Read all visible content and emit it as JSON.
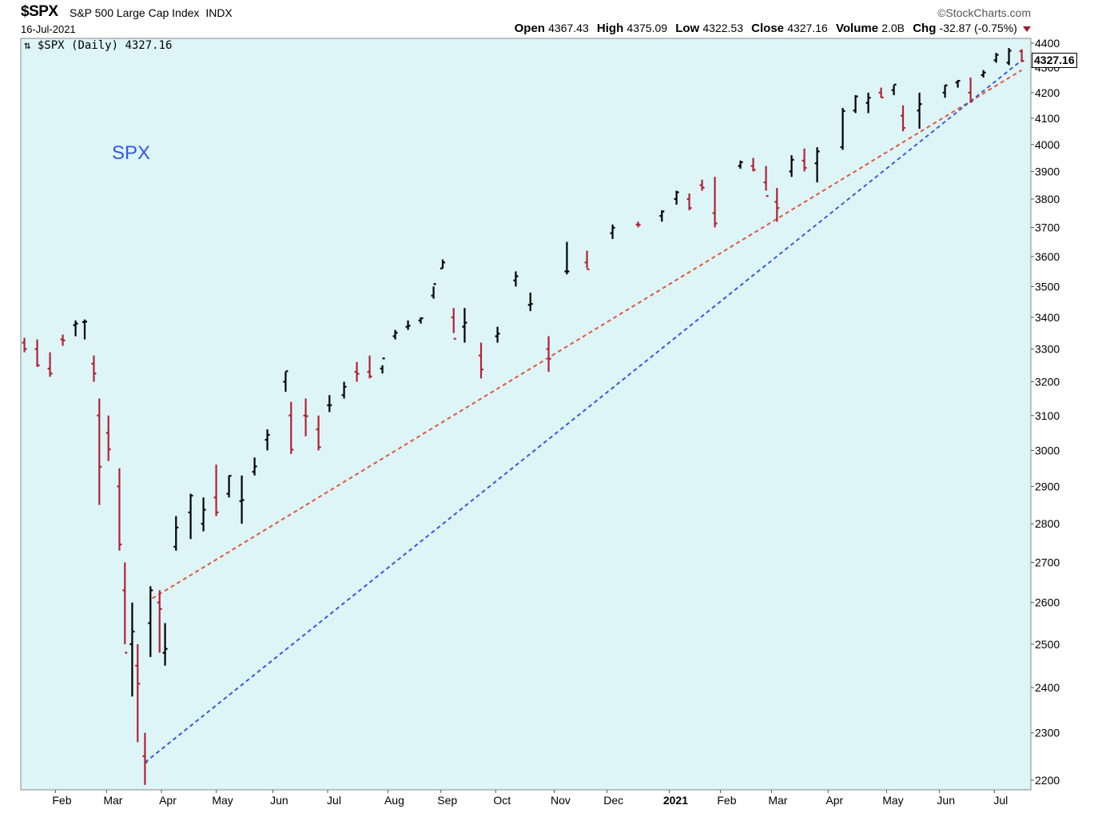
{
  "header": {
    "symbol": "$SPX",
    "name": "S&P 500 Large Cap Index",
    "exchange": "INDX",
    "date": "16-Jul-2021",
    "brand": "©StockCharts.com",
    "open_label": "Open",
    "open": "4367.43",
    "high_label": "High",
    "high": "4375.09",
    "low_label": "Low",
    "low": "4322.53",
    "close_label": "Close",
    "close": "4327.16",
    "volume_label": "Volume",
    "volume": "2.0B",
    "chg_label": "Chg",
    "chg": "-32.87 (-0.75%)",
    "chg_direction_icon": "down-triangle-icon"
  },
  "legend": "$SPX (Daily) 4327.16",
  "annotation": "SPX",
  "last_value_label": "4327.16",
  "colors": {
    "background": "#ddf5f7",
    "up_bar": "#000000",
    "down_bar": "#b22234",
    "trendline_red": "#e0573f",
    "trendline_blue": "#3a5bdd",
    "annotation": "#3355ee"
  },
  "chart_data": {
    "type": "line",
    "scale": "log",
    "style": "ohlc-bars",
    "ylim": [
      2180,
      4420
    ],
    "yticks": [
      2200,
      2300,
      2400,
      2500,
      2600,
      2700,
      2800,
      2900,
      3000,
      3100,
      3200,
      3300,
      3400,
      3500,
      3600,
      3700,
      3800,
      3900,
      4000,
      4100,
      4200,
      4300,
      4400
    ],
    "ytick_labels": [
      "2200",
      "2300",
      "2400",
      "2500",
      "2600",
      "2700",
      "2800",
      "2900",
      "3000",
      "3100",
      "3200",
      "3300",
      "3400",
      "3500",
      "3600",
      "3700",
      "3800",
      "3900",
      "4000",
      "4100",
      "4200",
      "4300",
      "4400"
    ],
    "xticks": [
      {
        "date": "2020-02-03",
        "label": "Feb"
      },
      {
        "date": "2020-03-02",
        "label": "Mar"
      },
      {
        "date": "2020-04-01",
        "label": "Apr"
      },
      {
        "date": "2020-05-01",
        "label": "May"
      },
      {
        "date": "2020-06-01",
        "label": "Jun"
      },
      {
        "date": "2020-07-01",
        "label": "Jul"
      },
      {
        "date": "2020-08-03",
        "label": "Aug"
      },
      {
        "date": "2020-09-01",
        "label": "Sep"
      },
      {
        "date": "2020-10-01",
        "label": "Oct"
      },
      {
        "date": "2020-11-02",
        "label": "Nov"
      },
      {
        "date": "2020-12-01",
        "label": "Dec"
      },
      {
        "date": "2021-01-04",
        "label": "2021",
        "bold": true
      },
      {
        "date": "2021-02-01",
        "label": "Feb"
      },
      {
        "date": "2021-03-01",
        "label": "Mar"
      },
      {
        "date": "2021-04-01",
        "label": "Apr"
      },
      {
        "date": "2021-05-03",
        "label": "May"
      },
      {
        "date": "2021-06-01",
        "label": "Jun"
      },
      {
        "date": "2021-07-01",
        "label": "Jul"
      }
    ],
    "series": [
      {
        "kind": "ohlc",
        "x": [
          "2020-01-17",
          "2020-01-24",
          "2020-01-31",
          "2020-02-07",
          "2020-02-14",
          "2020-02-19",
          "2020-02-24",
          "2020-02-27",
          "2020-03-03",
          "2020-03-09",
          "2020-03-12",
          "2020-03-16",
          "2020-03-19",
          "2020-03-23",
          "2020-03-26",
          "2020-03-31",
          "2020-04-03",
          "2020-04-09",
          "2020-04-17",
          "2020-04-24",
          "2020-05-01",
          "2020-05-08",
          "2020-05-15",
          "2020-05-22",
          "2020-05-29",
          "2020-06-08",
          "2020-06-11",
          "2020-06-19",
          "2020-06-26",
          "2020-07-02",
          "2020-07-10",
          "2020-07-17",
          "2020-07-24",
          "2020-07-31",
          "2020-08-07",
          "2020-08-14",
          "2020-08-21",
          "2020-08-28",
          "2020-09-02",
          "2020-09-08",
          "2020-09-14",
          "2020-09-23",
          "2020-10-02",
          "2020-10-12",
          "2020-10-20",
          "2020-10-30",
          "2020-11-09",
          "2020-11-20",
          "2020-12-04",
          "2020-12-18",
          "2020-12-31",
          "2021-01-08",
          "2021-01-15",
          "2021-01-22",
          "2021-01-29",
          "2021-02-12",
          "2021-02-19",
          "2021-02-26",
          "2021-03-04",
          "2021-03-12",
          "2021-03-19",
          "2021-03-26",
          "2021-04-09",
          "2021-04-16",
          "2021-04-23",
          "2021-04-30",
          "2021-05-07",
          "2021-05-12",
          "2021-05-21",
          "2021-06-04",
          "2021-06-11",
          "2021-06-18",
          "2021-06-25",
          "2021-07-02",
          "2021-07-09",
          "2021-07-16"
        ],
        "open": [
          3320,
          3300,
          3240,
          3330,
          3375,
          3385,
          3255,
          3100,
          3050,
          2900,
          2630,
          2500,
          2450,
          2250,
          2550,
          2600,
          2480,
          2740,
          2830,
          2800,
          2870,
          2880,
          2860,
          2940,
          3030,
          3200,
          3100,
          3100,
          3060,
          3130,
          3160,
          3230,
          3230,
          3240,
          3340,
          3370,
          3390,
          3470,
          3560,
          3400,
          3370,
          3280,
          3340,
          3520,
          3440,
          3300,
          3550,
          3580,
          3680,
          3710,
          3740,
          3800,
          3800,
          3850,
          3750,
          3920,
          3920,
          3860,
          3790,
          3900,
          3940,
          3930,
          3990,
          4130,
          4160,
          4200,
          4210,
          4110,
          4130,
          4200,
          4240,
          4200,
          4270,
          4330,
          4320,
          4367
        ],
        "high": [
          3335,
          3330,
          3290,
          3345,
          3390,
          3393,
          3280,
          3150,
          3100,
          2950,
          2700,
          2600,
          2500,
          2300,
          2640,
          2630,
          2550,
          2820,
          2880,
          2870,
          2960,
          2930,
          2930,
          2980,
          3060,
          3230,
          3140,
          3150,
          3100,
          3160,
          3200,
          3260,
          3280,
          3250,
          3360,
          3390,
          3400,
          3500,
          3590,
          3430,
          3430,
          3320,
          3370,
          3550,
          3480,
          3340,
          3650,
          3620,
          3710,
          3720,
          3760,
          3830,
          3820,
          3870,
          3880,
          3940,
          3950,
          3920,
          3840,
          3960,
          3985,
          3990,
          4140,
          4190,
          4200,
          4220,
          4230,
          4150,
          4200,
          4230,
          4250,
          4260,
          4290,
          4360,
          4380,
          4375
        ],
        "low": [
          3290,
          3245,
          3215,
          3310,
          3340,
          3330,
          3200,
          2850,
          2970,
          2730,
          2500,
          2380,
          2280,
          2190,
          2470,
          2480,
          2450,
          2730,
          2760,
          2780,
          2820,
          2870,
          2800,
          2930,
          3000,
          3170,
          2990,
          3040,
          3000,
          3110,
          3150,
          3200,
          3210,
          3225,
          3330,
          3360,
          3380,
          3460,
          3560,
          3350,
          3320,
          3210,
          3320,
          3500,
          3420,
          3230,
          3540,
          3560,
          3660,
          3700,
          3720,
          3780,
          3760,
          3830,
          3700,
          3910,
          3900,
          3830,
          3720,
          3880,
          3900,
          3860,
          3980,
          4120,
          4120,
          4180,
          4190,
          4050,
          4060,
          4180,
          4220,
          4160,
          4260,
          4320,
          4310,
          4322.53
        ],
        "close": [
          3300,
          3250,
          3225,
          3327,
          3380,
          3386,
          3225,
          2954,
          3003,
          2746,
          2480,
          2530,
          2409,
          2237,
          2630,
          2584,
          2489,
          2790,
          2875,
          2837,
          2830,
          2929,
          2863,
          2955,
          3044,
          3232,
          3002,
          3098,
          3009,
          3130,
          3185,
          3224,
          3216,
          3271,
          3351,
          3373,
          3397,
          3508,
          3580,
          3332,
          3383,
          3237,
          3348,
          3534,
          3443,
          3270,
          3550,
          3557,
          3699,
          3709,
          3756,
          3824,
          3768,
          3841,
          3714,
          3934,
          3906,
          3811,
          3768,
          3943,
          3913,
          3974,
          4128,
          4185,
          4180,
          4181,
          4232,
          4063,
          4155,
          4229,
          4247,
          4166,
          4280,
          4352,
          4369,
          4327.16
        ]
      }
    ],
    "trendlines": [
      {
        "name": "",
        "color": "red",
        "style": "dashed",
        "from": {
          "x": "2020-03-27",
          "y": 2610
        },
        "to": {
          "x": "2021-07-16",
          "y": 4290
        }
      },
      {
        "name": "",
        "color": "blue",
        "style": "dashed",
        "from": {
          "x": "2020-03-23",
          "y": 2237
        },
        "to": {
          "x": "2021-07-16",
          "y": 4330
        }
      }
    ]
  }
}
